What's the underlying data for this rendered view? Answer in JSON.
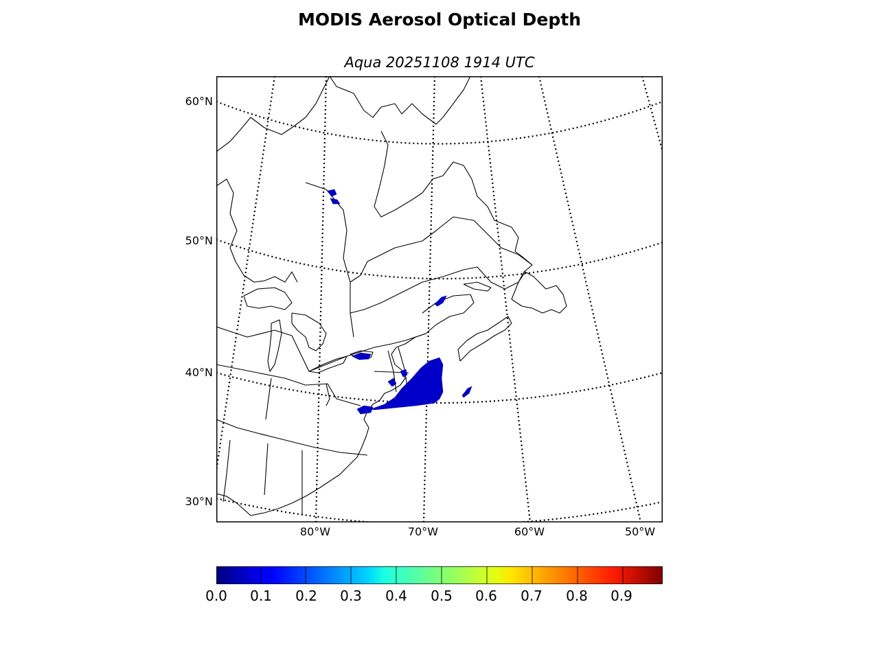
{
  "title": "MODIS Aerosol Optical Depth",
  "subtitle": "Aqua 20251108 1914 UTC",
  "map": {
    "projection": "lambert-conformal",
    "parallels_labels": [
      "60°N",
      "50°N",
      "40°N",
      "30°N"
    ],
    "meridians_labels": [
      "80°W",
      "70°W",
      "60°W",
      "50°W"
    ],
    "region": "Eastern North America / Northwest Atlantic",
    "aod_regions": [
      {
        "name": "Southern New England and coastal waters",
        "aod": 0.05
      },
      {
        "name": "Lake Ontario area",
        "aod": 0.05
      },
      {
        "name": "Northern Quebec patch",
        "aod": 0.05
      },
      {
        "name": "St. Lawrence estuary",
        "aod": 0.1
      },
      {
        "name": "Gulf of Maine offshore patch",
        "aod": 0.1
      }
    ],
    "colors": {
      "coastline": "#000000",
      "gridline": "#000000",
      "aod_low": "#0000c8"
    }
  },
  "colorbar": {
    "colormap": "jet",
    "range": [
      0.0,
      1.0
    ],
    "tick_labels": [
      "0.0",
      "0.1",
      "0.2",
      "0.3",
      "0.4",
      "0.5",
      "0.6",
      "0.7",
      "0.8",
      "0.9"
    ]
  }
}
